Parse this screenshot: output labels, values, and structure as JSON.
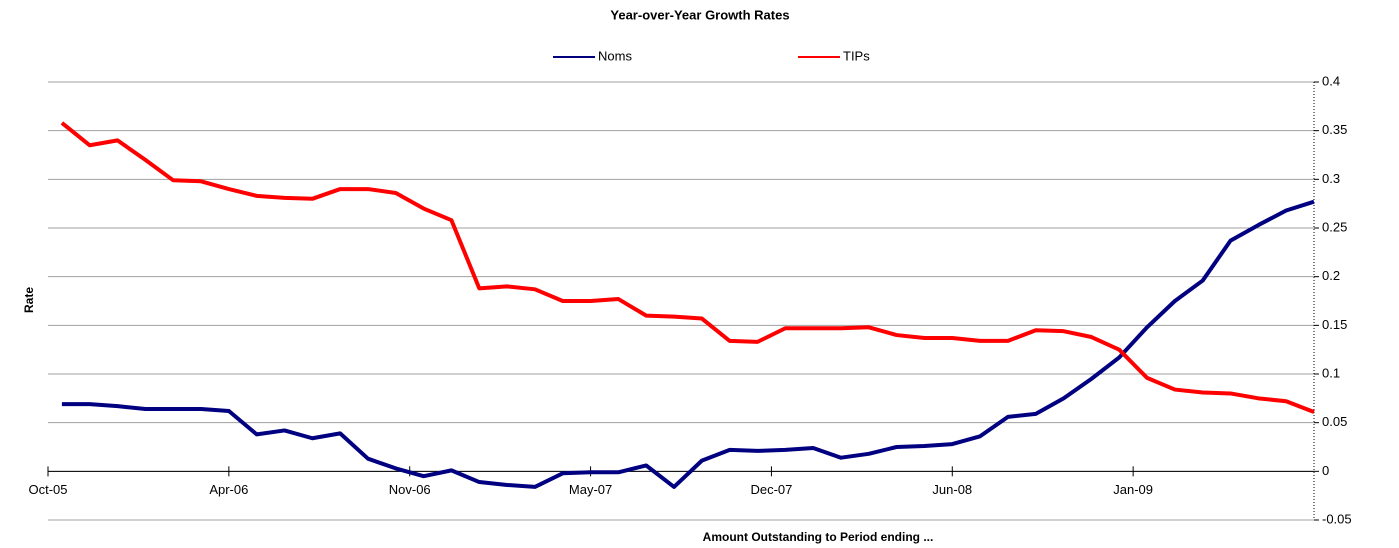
{
  "chart_data": {
    "type": "line",
    "title": "Year-over-Year Growth Rates",
    "x_label": "Amount Outstanding to Period ending ...",
    "y_label": "Rate",
    "x": [
      0.5,
      1.5,
      2.5,
      3.5,
      4.5,
      5.5,
      6.5,
      7.5,
      8.5,
      9.5,
      10.5,
      11.5,
      12.5,
      13.5,
      14.5,
      15.5,
      16.5,
      17.5,
      18.5,
      19.5,
      20.5,
      21.5,
      22.5,
      23.5,
      24.5,
      25.5,
      26.5,
      27.5,
      28.5,
      29.5,
      30.5,
      31.5,
      32.5,
      33.5,
      34.5,
      35.5,
      36.5,
      37.5,
      38.5,
      39.5,
      40.5,
      41.5,
      42.5,
      43.5,
      44.5,
      45.5
    ],
    "xlim": [
      0,
      45.5
    ],
    "xticks": [
      {
        "value": 0,
        "label": "Oct-05"
      },
      {
        "value": 6.5,
        "label": "Apr-06"
      },
      {
        "value": 13,
        "label": "Nov-06"
      },
      {
        "value": 19.5,
        "label": "May-07"
      },
      {
        "value": 26,
        "label": "Dec-07"
      },
      {
        "value": 32.5,
        "label": "Jun-08"
      },
      {
        "value": 39,
        "label": "Jan-09"
      }
    ],
    "ylim": [
      -0.05,
      0.4
    ],
    "yticks": [
      -0.05,
      0,
      0.05,
      0.1,
      0.15,
      0.2,
      0.25,
      0.3,
      0.35,
      0.4
    ],
    "grid": true,
    "legend": "top",
    "series": [
      {
        "name": "Noms",
        "color": "#000080",
        "values": [
          0.069,
          0.069,
          0.067,
          0.064,
          0.064,
          0.064,
          0.062,
          0.038,
          0.042,
          0.034,
          0.039,
          0.013,
          0.003,
          -0.005,
          0.001,
          -0.011,
          -0.014,
          -0.016,
          -0.002,
          -0.001,
          -0.001,
          0.006,
          -0.016,
          0.011,
          0.022,
          0.021,
          0.022,
          0.024,
          0.014,
          0.018,
          0.025,
          0.026,
          0.028,
          0.036,
          0.056,
          0.059,
          0.075,
          0.095,
          0.117,
          0.148,
          0.175,
          0.196,
          0.237,
          0.253,
          0.268,
          0.277
        ]
      },
      {
        "name": "TIPs",
        "color": "#ff0000",
        "values": [
          0.358,
          0.335,
          0.34,
          0.32,
          0.299,
          0.298,
          0.29,
          0.283,
          0.281,
          0.28,
          0.29,
          0.29,
          0.286,
          0.27,
          0.258,
          0.188,
          0.19,
          0.187,
          0.175,
          0.175,
          0.177,
          0.16,
          0.159,
          0.157,
          0.134,
          0.133,
          0.147,
          0.147,
          0.147,
          0.148,
          0.14,
          0.137,
          0.137,
          0.134,
          0.134,
          0.145,
          0.144,
          0.138,
          0.125,
          0.096,
          0.084,
          0.081,
          0.08,
          0.075,
          0.072,
          0.061
        ]
      }
    ]
  }
}
